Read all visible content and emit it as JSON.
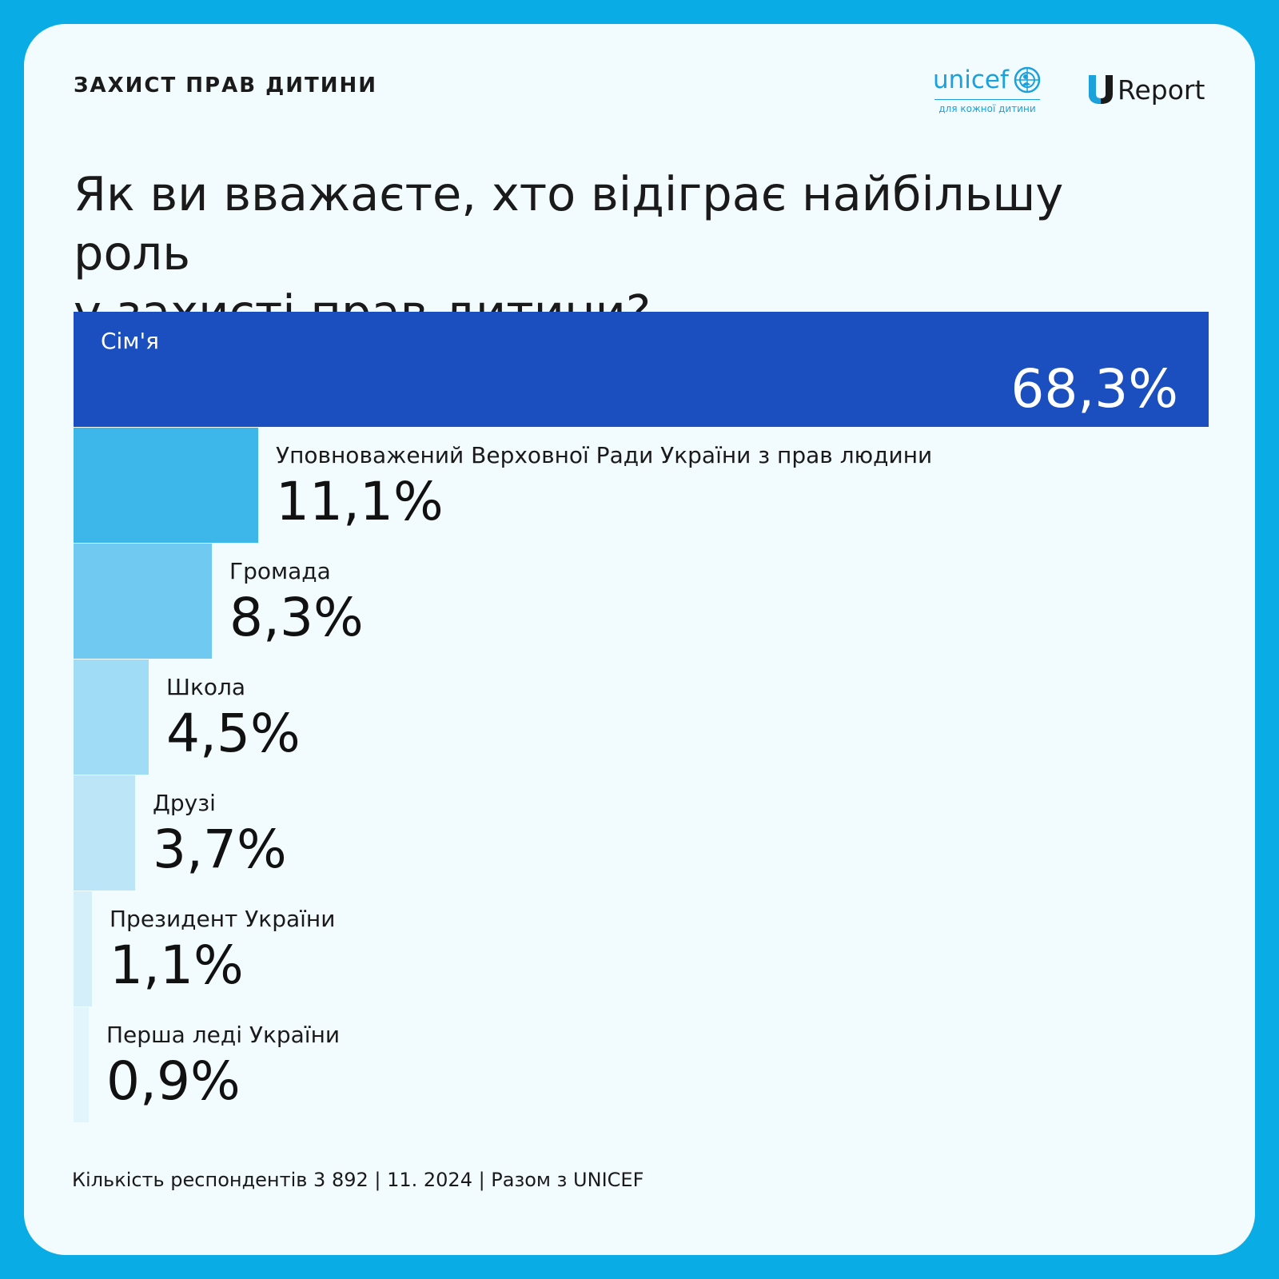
{
  "header": {
    "title": "ЗАХИСТ ПРАВ ДИТИНИ",
    "unicef_logo_text": "unicef",
    "unicef_tagline": "для кожної дитини",
    "ureport_logo_text": "Report"
  },
  "question_lines": [
    "Як ви вважаєте, хто відіграє найбільшу роль",
    "у захисті прав дитини?"
  ],
  "chart_data": {
    "type": "bar",
    "orientation": "horizontal",
    "categories": [
      "Сім'я",
      "Уповноважений Верховної Ради України з прав людини",
      "Громада",
      "Школа",
      "Друзі",
      "Президент України",
      "Перша леді України"
    ],
    "values": [
      68.3,
      11.1,
      8.3,
      4.5,
      3.7,
      1.1,
      0.9
    ],
    "value_labels": [
      "68,3%",
      "11,1%",
      "8,3%",
      "4,5%",
      "3,7%",
      "1,1%",
      "0,9%"
    ],
    "bar_colors": [
      "#1b4fc0",
      "#3db7ea",
      "#6fc9f0",
      "#a0dcf5",
      "#bce6f8",
      "#d4effa",
      "#e3f5fc"
    ],
    "xlim": [
      0,
      68.3
    ]
  },
  "footer": {
    "text": "Кількість респондентів 3 892 | 11. 2024 | Разом з UNICEF"
  },
  "colors": {
    "outer_background": "#0aace6",
    "card_background": "#f2fbfe",
    "brand_blue": "#1ba1dc",
    "top_bar": "#1b4fc0"
  }
}
